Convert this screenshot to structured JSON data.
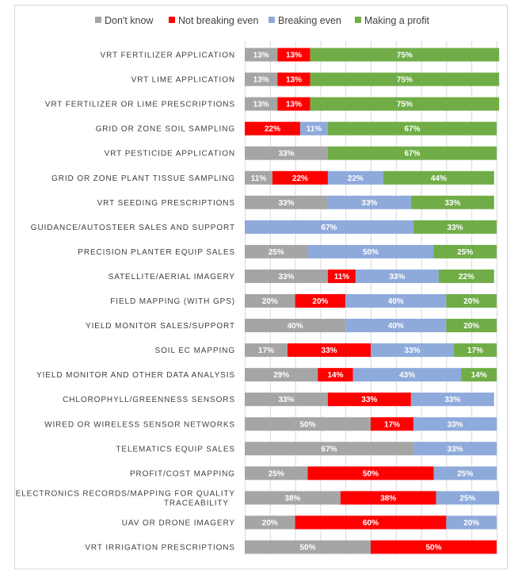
{
  "chart_data": {
    "type": "bar",
    "orientation": "horizontal",
    "stacked": "100%",
    "legend_position": "top",
    "grid": true,
    "xlim": [
      0,
      100
    ],
    "categories": [
      "VRT FERTILIZER APPLICATION",
      "VRT LIME APPLICATION",
      "VRT FERTILIZER OR LIME PRESCRIPTIONS",
      "GRID OR ZONE SOIL SAMPLING",
      "VRT PESTICIDE APPLICATION",
      "GRID OR ZONE PLANT TISSUE SAMPLING",
      "VRT SEEDING PRESCRIPTIONS",
      "GUIDANCE/AUTOSTEER SALES AND SUPPORT",
      "PRECISION PLANTER EQUIP SALES",
      "SATELLITE/AERIAL IMAGERY",
      "FIELD MAPPING (WITH GPS)",
      "YIELD MONITOR SALES/SUPPORT",
      "SOIL EC MAPPING",
      "YIELD MONITOR AND OTHER DATA ANALYSIS",
      "CHLOROPHYLL/GREENNESS SENSORS",
      "WIRED OR WIRELESS SENSOR NETWORKS",
      "TELEMATICS EQUIP SALES",
      "PROFIT/COST MAPPING",
      "ELECTRONICS RECORDS/MAPPING FOR QUALITY TRACEABILITY",
      "UAV OR DRONE IMAGERY",
      "VRT IRRIGATION PRESCRIPTIONS"
    ],
    "category_lines": [
      [
        "VRT FERTILIZER APPLICATION"
      ],
      [
        "VRT LIME APPLICATION"
      ],
      [
        "VRT FERTILIZER OR LIME PRESCRIPTIONS"
      ],
      [
        "GRID OR ZONE SOIL SAMPLING"
      ],
      [
        "VRT PESTICIDE APPLICATION"
      ],
      [
        "GRID OR ZONE PLANT TISSUE SAMPLING"
      ],
      [
        "VRT SEEDING PRESCRIPTIONS"
      ],
      [
        "GUIDANCE/AUTOSTEER SALES AND SUPPORT"
      ],
      [
        "PRECISION PLANTER EQUIP SALES"
      ],
      [
        "SATELLITE/AERIAL IMAGERY"
      ],
      [
        "FIELD MAPPING (WITH GPS)"
      ],
      [
        "YIELD MONITOR SALES/SUPPORT"
      ],
      [
        "SOIL EC MAPPING"
      ],
      [
        "YIELD MONITOR AND OTHER DATA ANALYSIS"
      ],
      [
        "CHLOROPHYLL/GREENNESS SENSORS"
      ],
      [
        "WIRED OR WIRELESS SENSOR NETWORKS"
      ],
      [
        "TELEMATICS EQUIP SALES"
      ],
      [
        "PROFIT/COST MAPPING"
      ],
      [
        "ELECTRONICS RECORDS/MAPPING FOR QUALITY",
        "TRACEABILITY"
      ],
      [
        "UAV OR DRONE IMAGERY"
      ],
      [
        "VRT IRRIGATION PRESCRIPTIONS"
      ]
    ],
    "series": [
      {
        "name": "Don't know",
        "color": "#a5a5a5",
        "values": [
          13,
          13,
          13,
          0,
          33,
          11,
          33,
          0,
          25,
          33,
          20,
          40,
          17,
          29,
          33,
          50,
          67,
          25,
          38,
          20,
          50
        ]
      },
      {
        "name": "Not breaking even",
        "color": "#ff0000",
        "values": [
          13,
          13,
          13,
          22,
          0,
          22,
          0,
          0,
          0,
          11,
          20,
          0,
          33,
          14,
          33,
          17,
          0,
          50,
          38,
          60,
          50
        ]
      },
      {
        "name": "Breaking even",
        "color": "#8eaadb",
        "values": [
          0,
          0,
          0,
          11,
          0,
          22,
          33,
          67,
          50,
          33,
          40,
          40,
          33,
          43,
          33,
          33,
          33,
          25,
          25,
          20,
          0
        ]
      },
      {
        "name": "Making a profit",
        "color": "#70ad47",
        "values": [
          75,
          75,
          75,
          67,
          67,
          44,
          33,
          33,
          25,
          22,
          20,
          20,
          17,
          14,
          0,
          0,
          0,
          0,
          0,
          0,
          0
        ]
      }
    ]
  }
}
